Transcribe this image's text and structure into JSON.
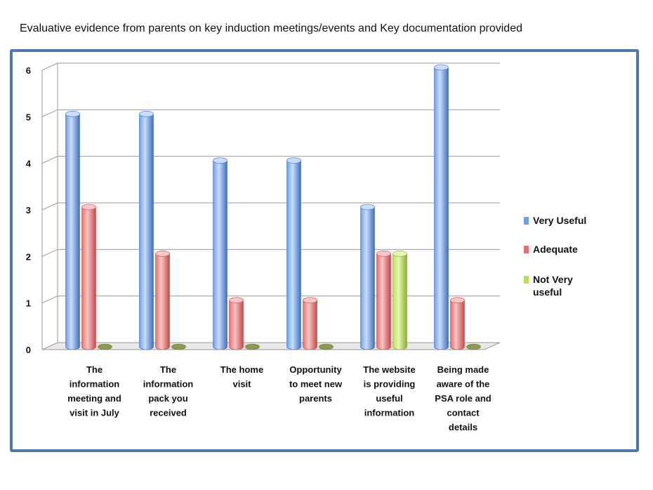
{
  "title": "Evaluative evidence from parents on key induction meetings/events and Key documentation provided",
  "colors": {
    "frame": "#4a79a8",
    "series": [
      "#6e9fe6",
      "#e86e6e",
      "#b6e050"
    ],
    "series_light": [
      "#c9ddfb",
      "#f7c6c6",
      "#e6f7b5"
    ],
    "series_dark": [
      "#3f6fc0",
      "#c84848",
      "#88b02e"
    ]
  },
  "chart_data": {
    "type": "bar",
    "title": "Evaluative evidence from parents on key induction meetings/events and Key documentation provided",
    "xlabel": "",
    "ylabel": "",
    "ylim": [
      0,
      6
    ],
    "yticks": [
      "0",
      "1",
      "2",
      "3",
      "4",
      "5",
      "6"
    ],
    "grid": true,
    "legend_position": "right",
    "categories": [
      [
        "The",
        "information",
        "meeting and",
        "visit in July"
      ],
      [
        "The",
        "information",
        "pack you",
        "received"
      ],
      [
        "The home",
        "visit"
      ],
      [
        "Opportunity",
        "to meet new",
        "parents"
      ],
      [
        "The website",
        "is providing",
        "useful",
        "information"
      ],
      [
        "Being made",
        "aware of the",
        "PSA role and",
        "contact",
        "details"
      ]
    ],
    "series": [
      {
        "name": "Very Useful",
        "legend_lines": [
          "Very Useful"
        ],
        "values": [
          5,
          5,
          4,
          4,
          3,
          6
        ]
      },
      {
        "name": "Adequate",
        "legend_lines": [
          "Adequate"
        ],
        "values": [
          3,
          2,
          1,
          1,
          2,
          1
        ]
      },
      {
        "name": "Not Very useful",
        "legend_lines": [
          "Not Very",
          "useful"
        ],
        "values": [
          0,
          0,
          0,
          0,
          2,
          0
        ]
      }
    ]
  }
}
